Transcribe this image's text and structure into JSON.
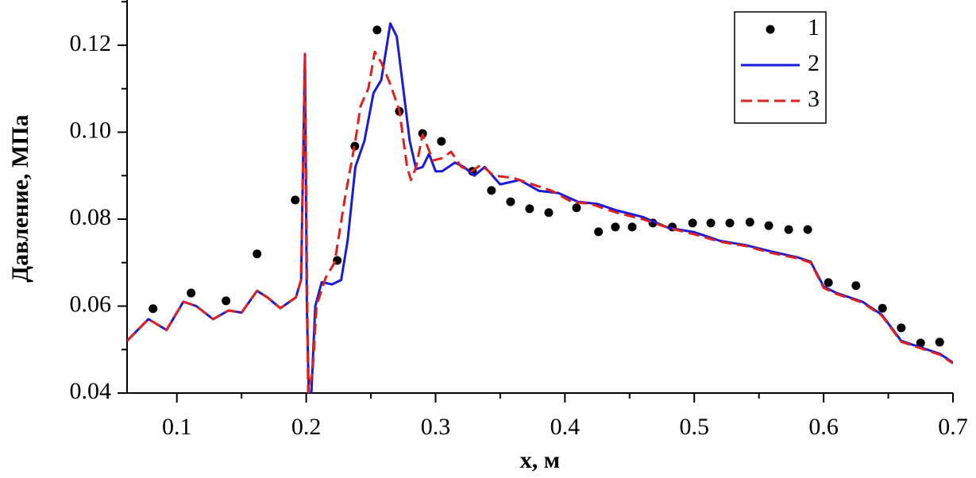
{
  "chart_data": {
    "type": "line",
    "xlabel": "x, м",
    "ylabel": "Давление, МПа",
    "xlim": [
      0.0615,
      0.7
    ],
    "ylim": [
      0.04,
      0.1304
    ],
    "xticks": [
      0.1,
      0.2,
      0.3,
      0.4,
      0.5,
      0.6,
      0.7
    ],
    "yticks": [
      {
        "value": 0.04,
        "label": "0.04"
      },
      {
        "value": 0.06,
        "label": "0.06"
      },
      {
        "value": 0.08,
        "label": "0.08"
      },
      {
        "value": 0.1,
        "label": "0.10"
      },
      {
        "value": 0.12,
        "label": "0.12"
      }
    ],
    "xticks_minor": [
      0.15,
      0.25,
      0.35,
      0.45,
      0.55,
      0.65
    ],
    "yticks_minor": [
      0.05,
      0.07,
      0.09,
      0.11,
      0.13
    ],
    "legend": "upper right",
    "series": [
      {
        "name": "1",
        "type": "scatter",
        "color": "#000000",
        "x": [
          0.0816,
          0.111,
          0.138,
          0.162,
          0.1915,
          0.224,
          0.2376,
          0.2548,
          0.272,
          0.29,
          0.3045,
          0.3285,
          0.3432,
          0.358,
          0.3727,
          0.3875,
          0.409,
          0.426,
          0.439,
          0.452,
          0.468,
          0.483,
          0.4987,
          0.5128,
          0.5275,
          0.543,
          0.5576,
          0.573,
          0.5877,
          0.6037,
          0.625,
          0.6455,
          0.66,
          0.675,
          0.6897
        ],
        "values": [
          0.0594,
          0.063,
          0.0612,
          0.072,
          0.0844,
          0.0705,
          0.0968,
          0.1235,
          0.1048,
          0.0997,
          0.0979,
          0.091,
          0.0866,
          0.084,
          0.0824,
          0.0815,
          0.0826,
          0.0771,
          0.0782,
          0.0782,
          0.0791,
          0.0782,
          0.0791,
          0.0791,
          0.0791,
          0.0793,
          0.0785,
          0.0776,
          0.0776,
          0.0654,
          0.0647,
          0.0595,
          0.055,
          0.0515,
          0.0517
        ]
      },
      {
        "name": "2",
        "type": "line",
        "color": "#1a1adc",
        "dash": false,
        "x": [
          0.0615,
          0.078,
          0.092,
          0.105,
          0.115,
          0.128,
          0.14,
          0.15,
          0.162,
          0.17,
          0.18,
          0.192,
          0.196,
          0.199,
          0.2005,
          0.202,
          0.204,
          0.207,
          0.212,
          0.22,
          0.227,
          0.232,
          0.238,
          0.245,
          0.252,
          0.258,
          0.265,
          0.27,
          0.275,
          0.28,
          0.285,
          0.29,
          0.295,
          0.3,
          0.305,
          0.315,
          0.322,
          0.33,
          0.338,
          0.35,
          0.365,
          0.38,
          0.395,
          0.41,
          0.425,
          0.44,
          0.46,
          0.48,
          0.5,
          0.52,
          0.54,
          0.56,
          0.58,
          0.59,
          0.6,
          0.61,
          0.63,
          0.645,
          0.66,
          0.675,
          0.69,
          0.7
        ],
        "values": [
          0.052,
          0.057,
          0.0545,
          0.061,
          0.06,
          0.057,
          0.059,
          0.0585,
          0.0635,
          0.062,
          0.0595,
          0.062,
          0.066,
          0.118,
          0.06,
          0.04,
          0.04,
          0.06,
          0.0655,
          0.065,
          0.066,
          0.075,
          0.092,
          0.098,
          0.109,
          0.112,
          0.125,
          0.122,
          0.11,
          0.098,
          0.0915,
          0.092,
          0.095,
          0.091,
          0.091,
          0.093,
          0.092,
          0.09,
          0.092,
          0.088,
          0.089,
          0.0865,
          0.086,
          0.084,
          0.0835,
          0.082,
          0.0805,
          0.078,
          0.077,
          0.075,
          0.074,
          0.0725,
          0.0712,
          0.0702,
          0.0645,
          0.063,
          0.061,
          0.058,
          0.052,
          0.0505,
          0.049,
          0.047
        ]
      },
      {
        "name": "3",
        "type": "line",
        "color": "#e0201c",
        "dash": true,
        "x": [
          0.0615,
          0.078,
          0.092,
          0.105,
          0.115,
          0.128,
          0.14,
          0.15,
          0.162,
          0.17,
          0.18,
          0.192,
          0.196,
          0.199,
          0.2015,
          0.205,
          0.208,
          0.215,
          0.222,
          0.23,
          0.238,
          0.242,
          0.248,
          0.253,
          0.258,
          0.265,
          0.272,
          0.278,
          0.281,
          0.285,
          0.29,
          0.298,
          0.305,
          0.312,
          0.32,
          0.328,
          0.335,
          0.345,
          0.36,
          0.375,
          0.39,
          0.405,
          0.42,
          0.44,
          0.46,
          0.48,
          0.5,
          0.52,
          0.54,
          0.56,
          0.58,
          0.59,
          0.6,
          0.61,
          0.63,
          0.645,
          0.66,
          0.675,
          0.69,
          0.7
        ],
        "values": [
          0.052,
          0.057,
          0.0545,
          0.061,
          0.06,
          0.057,
          0.059,
          0.0585,
          0.0635,
          0.062,
          0.0595,
          0.062,
          0.066,
          0.118,
          0.04,
          0.045,
          0.06,
          0.0665,
          0.07,
          0.085,
          0.098,
          0.106,
          0.11,
          0.1185,
          0.116,
          0.111,
          0.105,
          0.092,
          0.089,
          0.092,
          0.0995,
          0.0935,
          0.094,
          0.0955,
          0.092,
          0.091,
          0.0925,
          0.09,
          0.0895,
          0.088,
          0.0865,
          0.084,
          0.0835,
          0.0815,
          0.08,
          0.078,
          0.0765,
          0.0748,
          0.0738,
          0.0722,
          0.071,
          0.07,
          0.0642,
          0.0628,
          0.0608,
          0.0578,
          0.0518,
          0.0503,
          0.0488,
          0.0468
        ]
      }
    ]
  }
}
